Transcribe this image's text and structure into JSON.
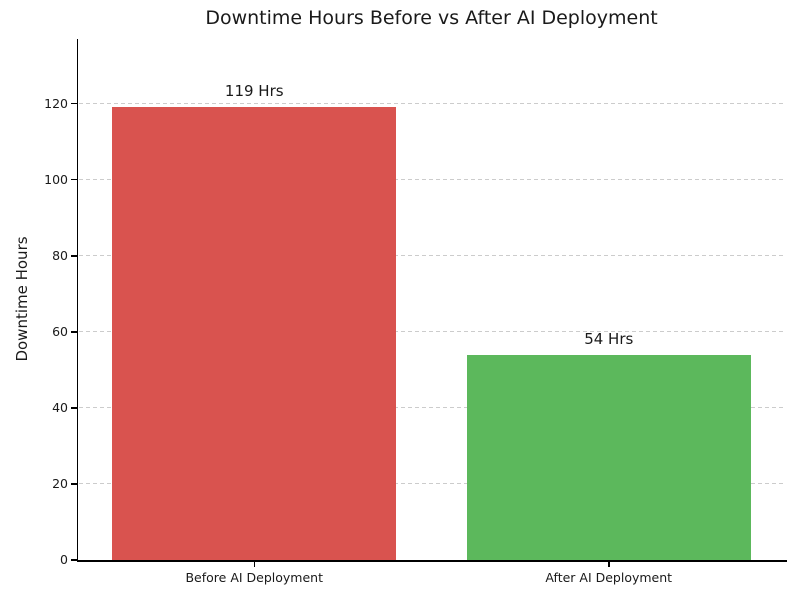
{
  "chart_data": {
    "type": "bar",
    "title": "Downtime Hours Before vs After AI Deployment",
    "xlabel": "",
    "ylabel": "Downtime Hours",
    "categories": [
      "Before AI Deployment",
      "After AI Deployment"
    ],
    "values": [
      119,
      54
    ],
    "bar_value_labels": [
      "119 Hrs",
      "54 Hrs"
    ],
    "bar_colors": [
      "#d9534f",
      "#5cb85c"
    ],
    "ylim": [
      0,
      137
    ],
    "yticks": [
      0,
      20,
      40,
      60,
      80,
      100,
      120
    ],
    "grid": "horizontal dashed",
    "grid_color": "#cccccc",
    "spine_color": "#000000",
    "text_color": "#1a1a1a",
    "legend": "none",
    "bar_width_fraction": 0.8
  }
}
